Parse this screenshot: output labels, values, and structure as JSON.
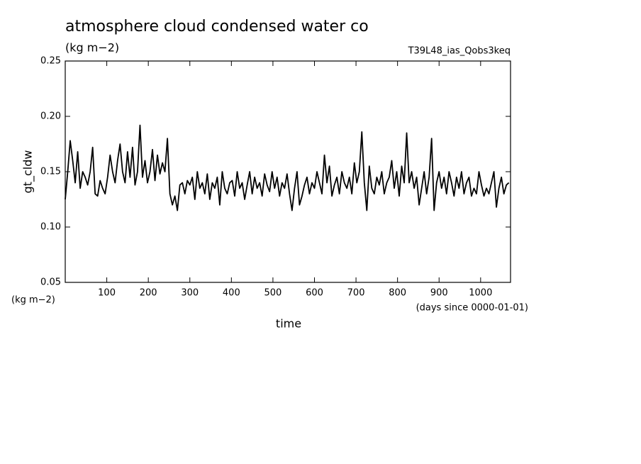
{
  "chart_data": {
    "type": "line",
    "title": "atmosphere cloud condensed water co",
    "subtitle": "(kg m−2)",
    "run_label": "T39L48_ias_Qobs3keq",
    "ylabel": "gt_cldw",
    "y_units": "(kg m−2)",
    "xlabel": "time",
    "x_units": "(days since 0000-01-01)",
    "color": "#000000",
    "xlim": [
      0,
      1072
    ],
    "ylim": [
      0.05,
      0.25
    ],
    "xticks": [
      100,
      200,
      300,
      400,
      500,
      600,
      700,
      800,
      900,
      1000
    ],
    "yticks": [
      {
        "value": 0.05,
        "label": "0.05"
      },
      {
        "value": 0.1,
        "label": "0.10"
      },
      {
        "value": 0.15,
        "label": "0.15"
      },
      {
        "value": 0.2,
        "label": "0.20"
      },
      {
        "value": 0.25,
        "label": "0.25"
      }
    ],
    "x": [
      0,
      6,
      12,
      18,
      24,
      30,
      36,
      42,
      48,
      54,
      60,
      66,
      72,
      78,
      84,
      90,
      96,
      102,
      108,
      114,
      120,
      126,
      132,
      138,
      144,
      150,
      156,
      162,
      168,
      174,
      180,
      186,
      192,
      198,
      204,
      210,
      216,
      222,
      228,
      234,
      240,
      246,
      252,
      258,
      264,
      270,
      276,
      282,
      288,
      294,
      300,
      306,
      312,
      318,
      324,
      330,
      336,
      342,
      348,
      354,
      360,
      366,
      372,
      378,
      384,
      390,
      396,
      402,
      408,
      414,
      420,
      426,
      432,
      438,
      444,
      450,
      456,
      462,
      468,
      474,
      480,
      486,
      492,
      498,
      504,
      510,
      516,
      522,
      528,
      534,
      540,
      546,
      552,
      558,
      564,
      570,
      576,
      582,
      588,
      594,
      600,
      606,
      612,
      618,
      624,
      630,
      636,
      642,
      648,
      654,
      660,
      666,
      672,
      678,
      684,
      690,
      696,
      702,
      708,
      714,
      720,
      726,
      732,
      738,
      744,
      750,
      756,
      762,
      768,
      774,
      780,
      786,
      792,
      798,
      804,
      810,
      816,
      822,
      828,
      834,
      840,
      846,
      852,
      858,
      864,
      870,
      876,
      882,
      888,
      894,
      900,
      906,
      912,
      918,
      924,
      930,
      936,
      942,
      948,
      954,
      960,
      966,
      972,
      978,
      984,
      990,
      996,
      1002,
      1008,
      1014,
      1020,
      1026,
      1032,
      1038,
      1044,
      1050,
      1056,
      1062,
      1068
    ],
    "values": [
      0.125,
      0.15,
      0.178,
      0.16,
      0.14,
      0.168,
      0.135,
      0.15,
      0.145,
      0.138,
      0.15,
      0.172,
      0.13,
      0.128,
      0.142,
      0.135,
      0.13,
      0.145,
      0.165,
      0.15,
      0.14,
      0.16,
      0.175,
      0.15,
      0.14,
      0.168,
      0.145,
      0.172,
      0.138,
      0.15,
      0.192,
      0.145,
      0.16,
      0.14,
      0.15,
      0.17,
      0.142,
      0.165,
      0.148,
      0.158,
      0.15,
      0.18,
      0.13,
      0.12,
      0.128,
      0.115,
      0.138,
      0.14,
      0.13,
      0.142,
      0.138,
      0.145,
      0.125,
      0.15,
      0.135,
      0.14,
      0.13,
      0.148,
      0.125,
      0.14,
      0.135,
      0.145,
      0.12,
      0.15,
      0.135,
      0.13,
      0.14,
      0.142,
      0.128,
      0.15,
      0.135,
      0.14,
      0.125,
      0.138,
      0.15,
      0.13,
      0.145,
      0.135,
      0.14,
      0.128,
      0.148,
      0.138,
      0.132,
      0.15,
      0.135,
      0.145,
      0.128,
      0.14,
      0.135,
      0.148,
      0.13,
      0.115,
      0.135,
      0.15,
      0.12,
      0.128,
      0.138,
      0.145,
      0.13,
      0.14,
      0.135,
      0.15,
      0.14,
      0.13,
      0.165,
      0.14,
      0.155,
      0.128,
      0.138,
      0.145,
      0.13,
      0.15,
      0.14,
      0.135,
      0.145,
      0.13,
      0.158,
      0.14,
      0.15,
      0.186,
      0.14,
      0.115,
      0.155,
      0.135,
      0.13,
      0.145,
      0.138,
      0.15,
      0.13,
      0.14,
      0.145,
      0.16,
      0.135,
      0.15,
      0.128,
      0.155,
      0.14,
      0.185,
      0.14,
      0.15,
      0.135,
      0.145,
      0.12,
      0.135,
      0.15,
      0.13,
      0.145,
      0.18,
      0.115,
      0.14,
      0.15,
      0.135,
      0.145,
      0.13,
      0.15,
      0.14,
      0.128,
      0.145,
      0.135,
      0.15,
      0.13,
      0.14,
      0.145,
      0.128,
      0.135,
      0.13,
      0.15,
      0.138,
      0.128,
      0.135,
      0.13,
      0.14,
      0.15,
      0.118,
      0.135,
      0.145,
      0.13,
      0.138,
      0.14
    ]
  }
}
